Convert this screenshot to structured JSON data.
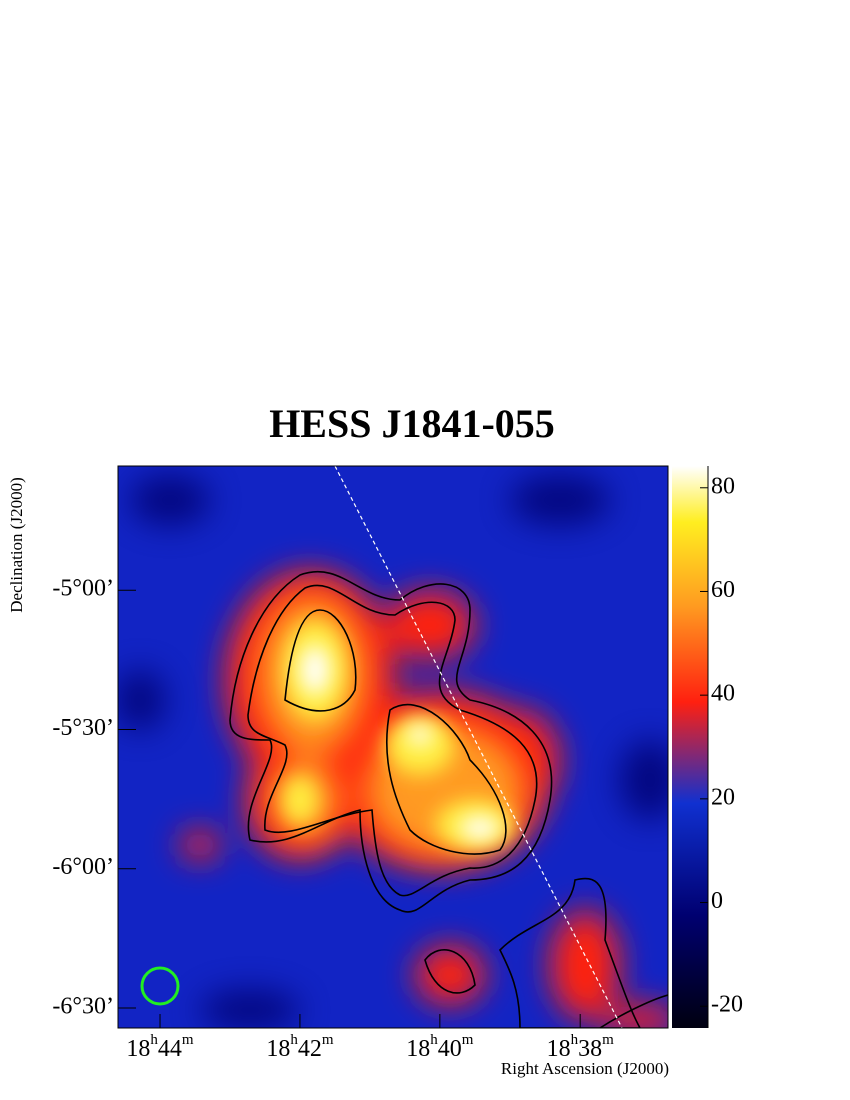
{
  "chart_data": {
    "type": "skymap",
    "title": "HESS J1841-055",
    "x_label": "Right Ascension (J2000)",
    "y_label": "Declination (J2000)",
    "xlim": [
      18.7433,
      18.6124
    ],
    "xticks": [
      {
        "value": 18.7333,
        "label": "18h44m"
      },
      {
        "value": 18.7,
        "label": "18h42m"
      },
      {
        "value": 18.6667,
        "label": "18h40m"
      },
      {
        "value": 18.6333,
        "label": "18h38m"
      }
    ],
    "ylim": [
      -6.572,
      -4.554
    ],
    "yticks": [
      {
        "value": -5.0,
        "label": "-5°00’"
      },
      {
        "value": -5.5,
        "label": "-5°30’"
      },
      {
        "value": -6.0,
        "label": "-6°00’"
      },
      {
        "value": -6.5,
        "label": "-6°30’"
      }
    ],
    "clim": [
      -24.2,
      84.2
    ],
    "cticks": [
      -20,
      0,
      20,
      40,
      60,
      80
    ]
  }
}
